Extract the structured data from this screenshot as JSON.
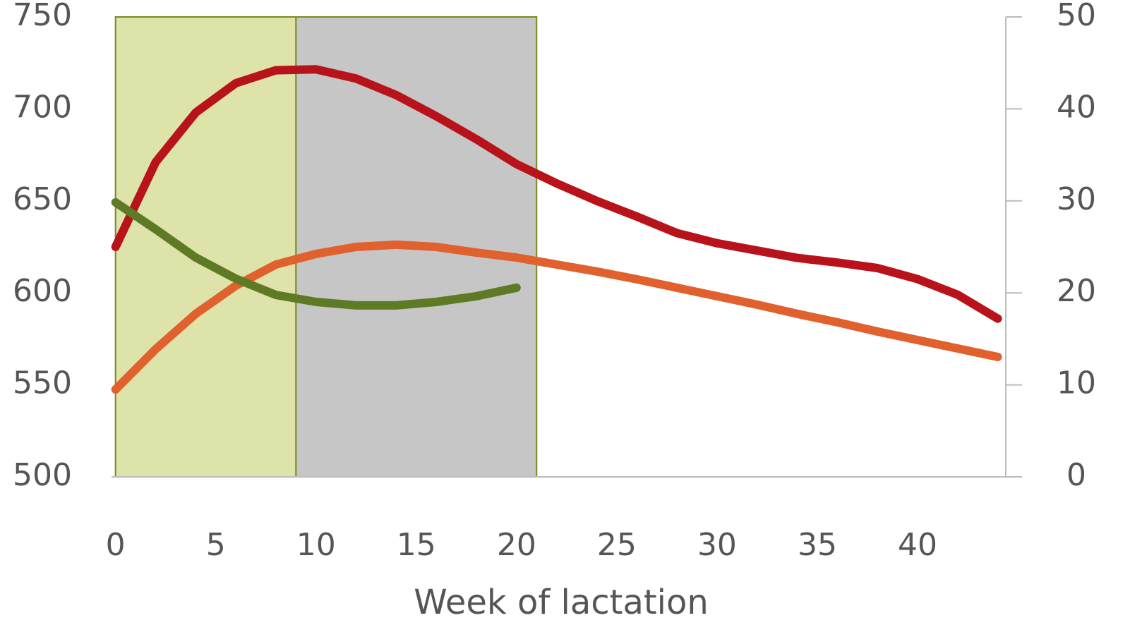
{
  "chart_data": {
    "type": "line",
    "xlabel": "Week of lactation",
    "x": [
      0,
      2,
      4,
      6,
      8,
      10,
      12,
      14,
      16,
      18,
      20,
      22,
      24,
      26,
      28,
      30,
      32,
      34,
      36,
      38,
      40,
      42,
      44
    ],
    "xlim": [
      -0.2,
      44.4
    ],
    "xticks": [
      0,
      5,
      10,
      15,
      20,
      25,
      30,
      35,
      40
    ],
    "ylim": [
      500,
      750
    ],
    "yticks": [
      500,
      550,
      600,
      650,
      700,
      750
    ],
    "y2lim": [
      0,
      50
    ],
    "y2ticks": [
      0,
      10,
      20,
      30,
      40,
      50
    ],
    "regions": [
      {
        "from": 0,
        "to": 9,
        "color": "#dde3a9"
      },
      {
        "from": 9,
        "to": 21,
        "color": "#c6c6c6"
      }
    ],
    "region_border": "#7a8a1e",
    "series": [
      {
        "axis": "y2",
        "color": "#b8121a",
        "values": [
          25.0,
          34.2,
          39.6,
          42.8,
          44.2,
          44.3,
          43.3,
          41.5,
          39.2,
          36.7,
          34.0,
          31.9,
          30.0,
          28.3,
          26.5,
          25.4,
          24.6,
          23.8,
          23.3,
          22.7,
          21.5,
          19.8,
          17.2
        ]
      },
      {
        "color": "#e0602e",
        "values": [
          547.5,
          569.4,
          588.6,
          603.9,
          615.4,
          621.2,
          625.0,
          626.2,
          625.0,
          621.9,
          619.2,
          615.4,
          611.6,
          607.4,
          602.8,
          598.2,
          593.6,
          588.6,
          584.0,
          579.0,
          574.4,
          569.8,
          565.2
        ]
      },
      {
        "color": "#5f7a25",
        "values": [
          649.2,
          634.6,
          619.2,
          607.7,
          598.9,
          595.1,
          593.2,
          593.2,
          595.1,
          598.2,
          602.8,
          null,
          null,
          null,
          null,
          null,
          null,
          null,
          null,
          null,
          null,
          null,
          null
        ]
      }
    ]
  }
}
